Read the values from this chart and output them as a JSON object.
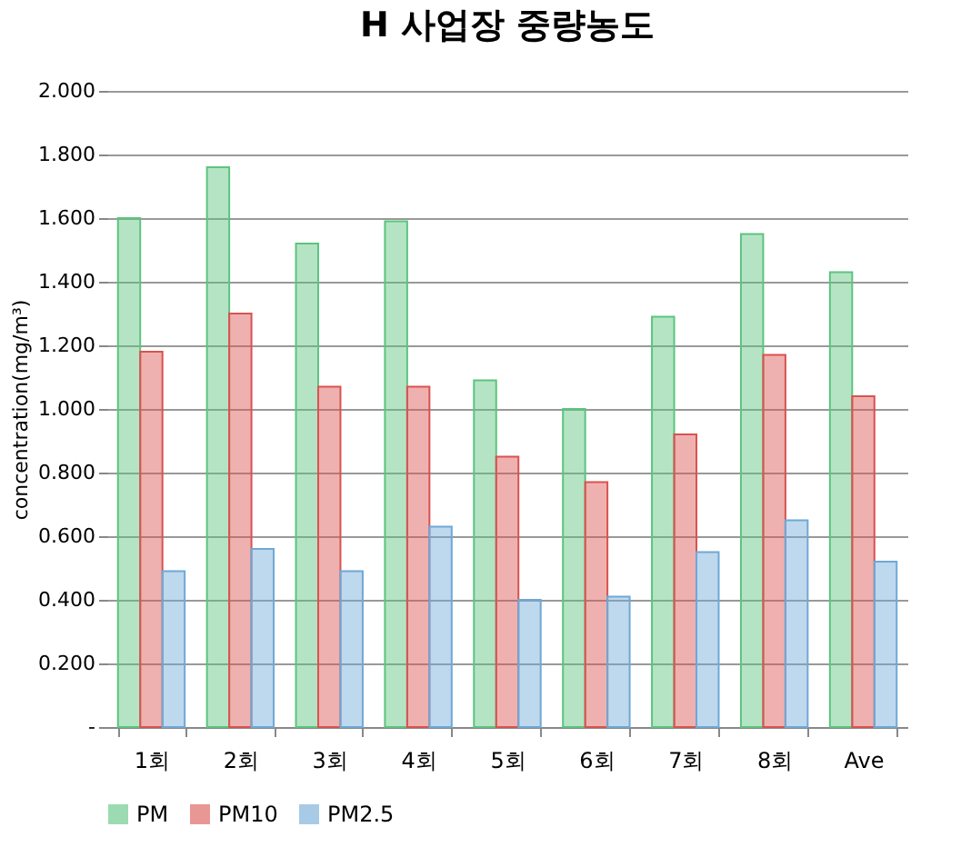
{
  "chart_data": {
    "type": "bar",
    "title": "H 사업장 중량농도",
    "ylabel": "concentration(mg/m³)",
    "categories": [
      "1회",
      "2회",
      "3회",
      "4회",
      "5회",
      "6회",
      "7회",
      "8회",
      "Ave"
    ],
    "series": [
      {
        "name": "PM",
        "color": "#5cc47e",
        "values": [
          1.6,
          1.76,
          1.52,
          1.59,
          1.09,
          1.0,
          1.29,
          1.55,
          1.43
        ]
      },
      {
        "name": "PM10",
        "color": "#d9534f",
        "values": [
          1.18,
          1.3,
          1.07,
          1.07,
          0.85,
          0.77,
          0.92,
          1.17,
          1.04
        ]
      },
      {
        "name": "PM2.5",
        "color": "#6fa8d6",
        "values": [
          0.49,
          0.56,
          0.49,
          0.63,
          0.4,
          0.41,
          0.55,
          0.65,
          0.52
        ]
      }
    ],
    "ylim": [
      0,
      2
    ],
    "yticks": [
      {
        "value": 0,
        "label": "-"
      },
      {
        "value": 0.2,
        "label": "0.200"
      },
      {
        "value": 0.4,
        "label": "0.400"
      },
      {
        "value": 0.6,
        "label": "0.600"
      },
      {
        "value": 0.8,
        "label": "0.800"
      },
      {
        "value": 1,
        "label": "1.000"
      },
      {
        "value": 1.2,
        "label": "1.200"
      },
      {
        "value": 1.4,
        "label": "1.400"
      },
      {
        "value": 1.6,
        "label": "1.600"
      },
      {
        "value": 1.8,
        "label": "1.800"
      },
      {
        "value": 2,
        "label": "2.000"
      }
    ],
    "grid": "y",
    "legend": "bottom"
  }
}
